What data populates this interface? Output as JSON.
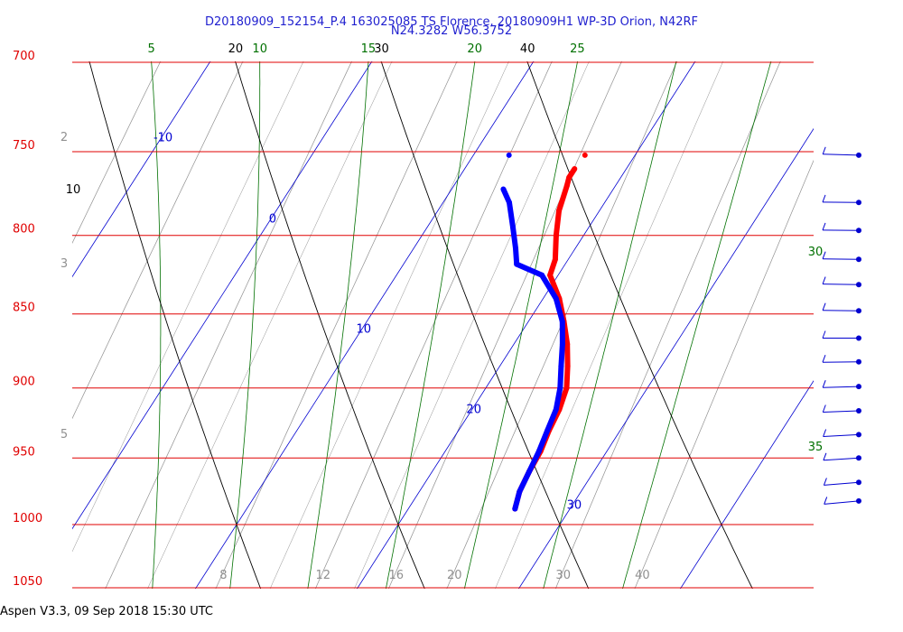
{
  "header": {
    "title_line1": "D20180909_152154_P.4 163025085 TS Florence, 20180909H1 WP-3D Orion, N42RF",
    "title_line2": "N24.3282 W56.3752"
  },
  "footer": {
    "text": "Aspen V3.3, 09 Sep 2018  15:30 UTC"
  },
  "colors": {
    "isobar": "#e00000",
    "dry_adiabat": "#000000",
    "moist_adiabat": "#007000",
    "isotherm": "#0000d0",
    "mixing_ratio": "#909090",
    "temperature": "#ff0000",
    "dewpoint": "#0000ff",
    "title": "#1f1fcf"
  },
  "chart_data": {
    "type": "skew-T log-P sounding",
    "y_axis": {
      "quantity": "pressure",
      "log_scale": true,
      "range": [
        700,
        1050
      ],
      "ticks": [
        "700",
        "750",
        "800",
        "850",
        "900",
        "950",
        "1000",
        "1050"
      ]
    },
    "isotherm_labels": [
      "-10",
      "0",
      "10",
      "20",
      "30"
    ],
    "dry_adiabat_labels": [
      "10",
      "20",
      "30",
      "40"
    ],
    "moist_adiabat_labels": [
      "5",
      "10",
      "15",
      "20",
      "25",
      "30",
      "35"
    ],
    "mixing_ratio_labels": [
      "2",
      "3",
      "5",
      "8",
      "12",
      "16",
      "20",
      "30",
      "40"
    ],
    "series": [
      {
        "key": "temperature",
        "points": [
          [
            988,
            26.6
          ],
          [
            975,
            26.2
          ],
          [
            960,
            26.0
          ],
          [
            945,
            25.9
          ],
          [
            930,
            25.6
          ],
          [
            915,
            25.4
          ],
          [
            900,
            25.0
          ],
          [
            885,
            24.2
          ],
          [
            870,
            23.3
          ],
          [
            855,
            22.2
          ],
          [
            840,
            21.0
          ],
          [
            825,
            19.5
          ],
          [
            815,
            19.2
          ],
          [
            800,
            18.3
          ],
          [
            785,
            17.5
          ],
          [
            770,
            17.0
          ],
          [
            765,
            16.8
          ],
          [
            760,
            16.8
          ]
        ]
      },
      {
        "key": "dewpoint",
        "points": [
          [
            988,
            26.6
          ],
          [
            975,
            26.2
          ],
          [
            960,
            26.0
          ],
          [
            945,
            25.8
          ],
          [
            930,
            25.5
          ],
          [
            915,
            25.2
          ],
          [
            900,
            24.6
          ],
          [
            885,
            23.8
          ],
          [
            870,
            23.0
          ],
          [
            855,
            22.1
          ],
          [
            840,
            20.8
          ],
          [
            825,
            19.0
          ],
          [
            818,
            17.0
          ],
          [
            808,
            16.3
          ],
          [
            795,
            15.3
          ],
          [
            780,
            14.1
          ],
          [
            772,
            13.2
          ]
        ]
      }
    ],
    "wind_barbs": [
      {
        "pressure": 752,
        "speed_kt": 20,
        "direction_deg": 95
      },
      {
        "pressure": 780,
        "speed_kt": 20,
        "direction_deg": 92
      },
      {
        "pressure": 797,
        "speed_kt": 20,
        "direction_deg": 92
      },
      {
        "pressure": 815,
        "speed_kt": 20,
        "direction_deg": 93
      },
      {
        "pressure": 831,
        "speed_kt": 20,
        "direction_deg": 93
      },
      {
        "pressure": 848,
        "speed_kt": 20,
        "direction_deg": 93
      },
      {
        "pressure": 866,
        "speed_kt": 20,
        "direction_deg": 90
      },
      {
        "pressure": 882,
        "speed_kt": 20,
        "direction_deg": 88
      },
      {
        "pressure": 899,
        "speed_kt": 20,
        "direction_deg": 85
      },
      {
        "pressure": 916,
        "speed_kt": 20,
        "direction_deg": 83
      },
      {
        "pressure": 933,
        "speed_kt": 20,
        "direction_deg": 80
      },
      {
        "pressure": 950,
        "speed_kt": 20,
        "direction_deg": 78
      },
      {
        "pressure": 968,
        "speed_kt": 20,
        "direction_deg": 75
      },
      {
        "pressure": 982,
        "speed_kt": 20,
        "direction_deg": 73
      }
    ],
    "grid": true
  }
}
